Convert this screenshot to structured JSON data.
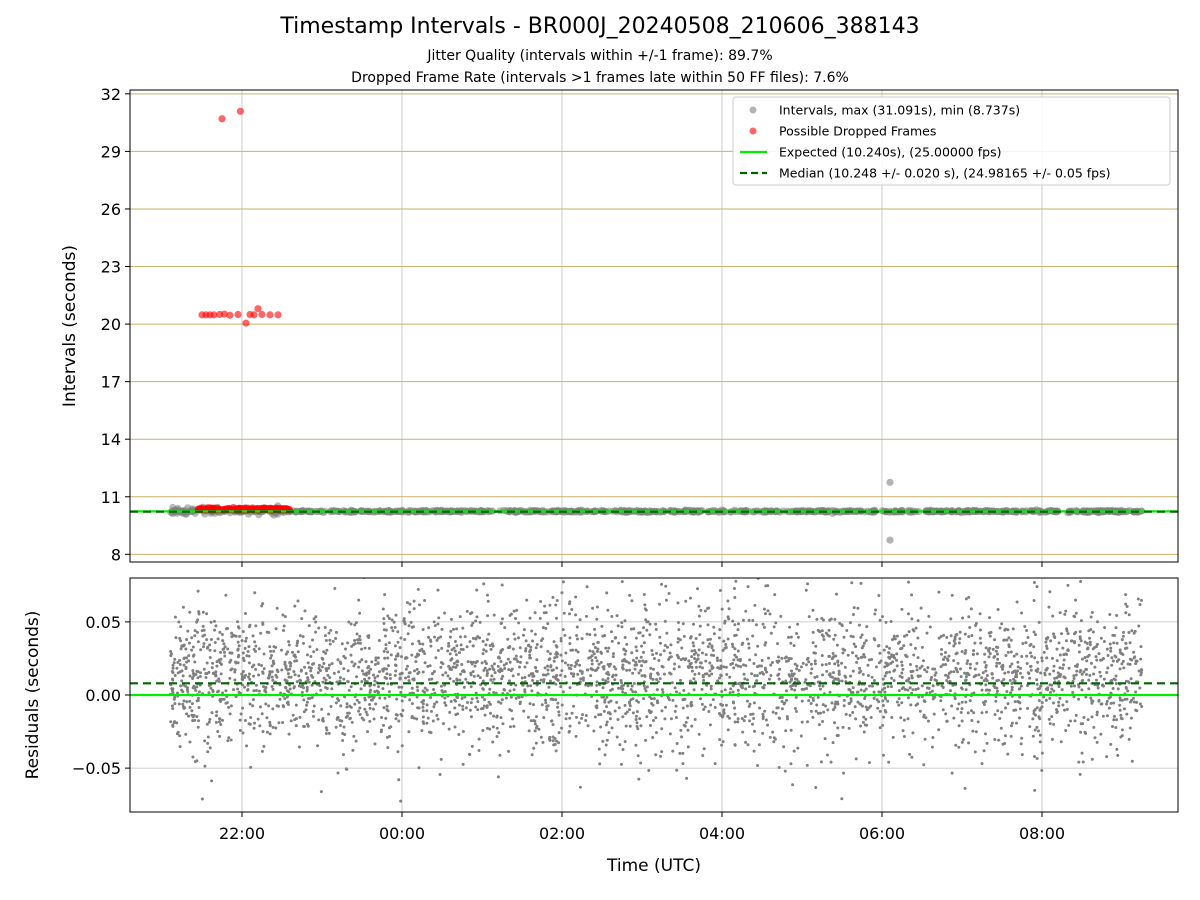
{
  "chart_data": [
    {
      "type": "scatter",
      "title": "Timestamp Intervals - BR000J_20240508_210606_388143",
      "subtitle_1": "Jitter Quality (intervals within +/-1 frame): 89.7%",
      "subtitle_2": "Dropped Frame Rate (intervals >1 frames late within 50 FF files): 7.6%",
      "ylabel": "Intervals (seconds)",
      "ylim": [
        7.6,
        32.2
      ],
      "yticks": [
        "8",
        "11",
        "14",
        "17",
        "20",
        "23",
        "26",
        "29",
        "32"
      ],
      "ytick_values": [
        8,
        11,
        14,
        17,
        20,
        23,
        26,
        29,
        32
      ],
      "grid": true,
      "legend_position": "top-right",
      "x_range_hours": [
        20.6,
        33.7
      ],
      "series": [
        {
          "name": "Intervals, max (31.091s), min (8.737s)",
          "color": "#808080",
          "span_hours": [
            21.1,
            33.25
          ],
          "typical_value": 10.24,
          "outliers": [
            [
              30.1,
              11.75
            ],
            [
              30.1,
              8.74
            ]
          ]
        },
        {
          "name": "Possible Dropped Frames",
          "color": "#ff0000",
          "points": [
            [
              21.5,
              20.48
            ],
            [
              21.55,
              20.48
            ],
            [
              21.6,
              20.48
            ],
            [
              21.65,
              20.48
            ],
            [
              21.72,
              20.5
            ],
            [
              21.78,
              20.52
            ],
            [
              21.85,
              20.46
            ],
            [
              21.95,
              20.5
            ],
            [
              22.05,
              20.05
            ],
            [
              22.1,
              20.5
            ],
            [
              22.15,
              20.48
            ],
            [
              22.2,
              20.8
            ],
            [
              22.25,
              20.5
            ],
            [
              22.35,
              20.48
            ],
            [
              22.45,
              20.48
            ],
            [
              21.75,
              30.7
            ],
            [
              21.98,
              31.09
            ]
          ],
          "near_baseline_span_hours": [
            21.45,
            22.6
          ]
        },
        {
          "name": "Expected (10.240s), (25.00000 fps)",
          "type": "hline",
          "value": 10.24,
          "color": "#00ee00"
        },
        {
          "name": "Median (10.248 +/- 0.020 s), (24.98165 +/- 0.05 fps)",
          "type": "hline",
          "value": 10.248,
          "color": "#006400",
          "style": "dashed"
        }
      ]
    },
    {
      "type": "scatter",
      "xlabel": "Time (UTC)",
      "ylabel": "Residuals (seconds)",
      "ylim": [
        -0.08,
        0.08
      ],
      "yticks": [
        "−0.05",
        "0.00",
        "0.05"
      ],
      "ytick_values": [
        -0.05,
        0.0,
        0.05
      ],
      "xticks": [
        "22:00",
        "00:00",
        "02:00",
        "04:00",
        "06:00",
        "08:00"
      ],
      "xtick_hours": [
        22,
        24,
        26,
        28,
        30,
        32
      ],
      "grid": true,
      "series": [
        {
          "type": "scatter",
          "color": "#808080",
          "span_hours": [
            21.1,
            33.25
          ],
          "point_count": 3500,
          "center": 0.012,
          "spread_sd": 0.025
        },
        {
          "type": "hline",
          "value": 0.0,
          "color": "#00ee00"
        },
        {
          "type": "hline",
          "value": 0.008,
          "color": "#006400",
          "style": "dashed"
        }
      ]
    }
  ]
}
